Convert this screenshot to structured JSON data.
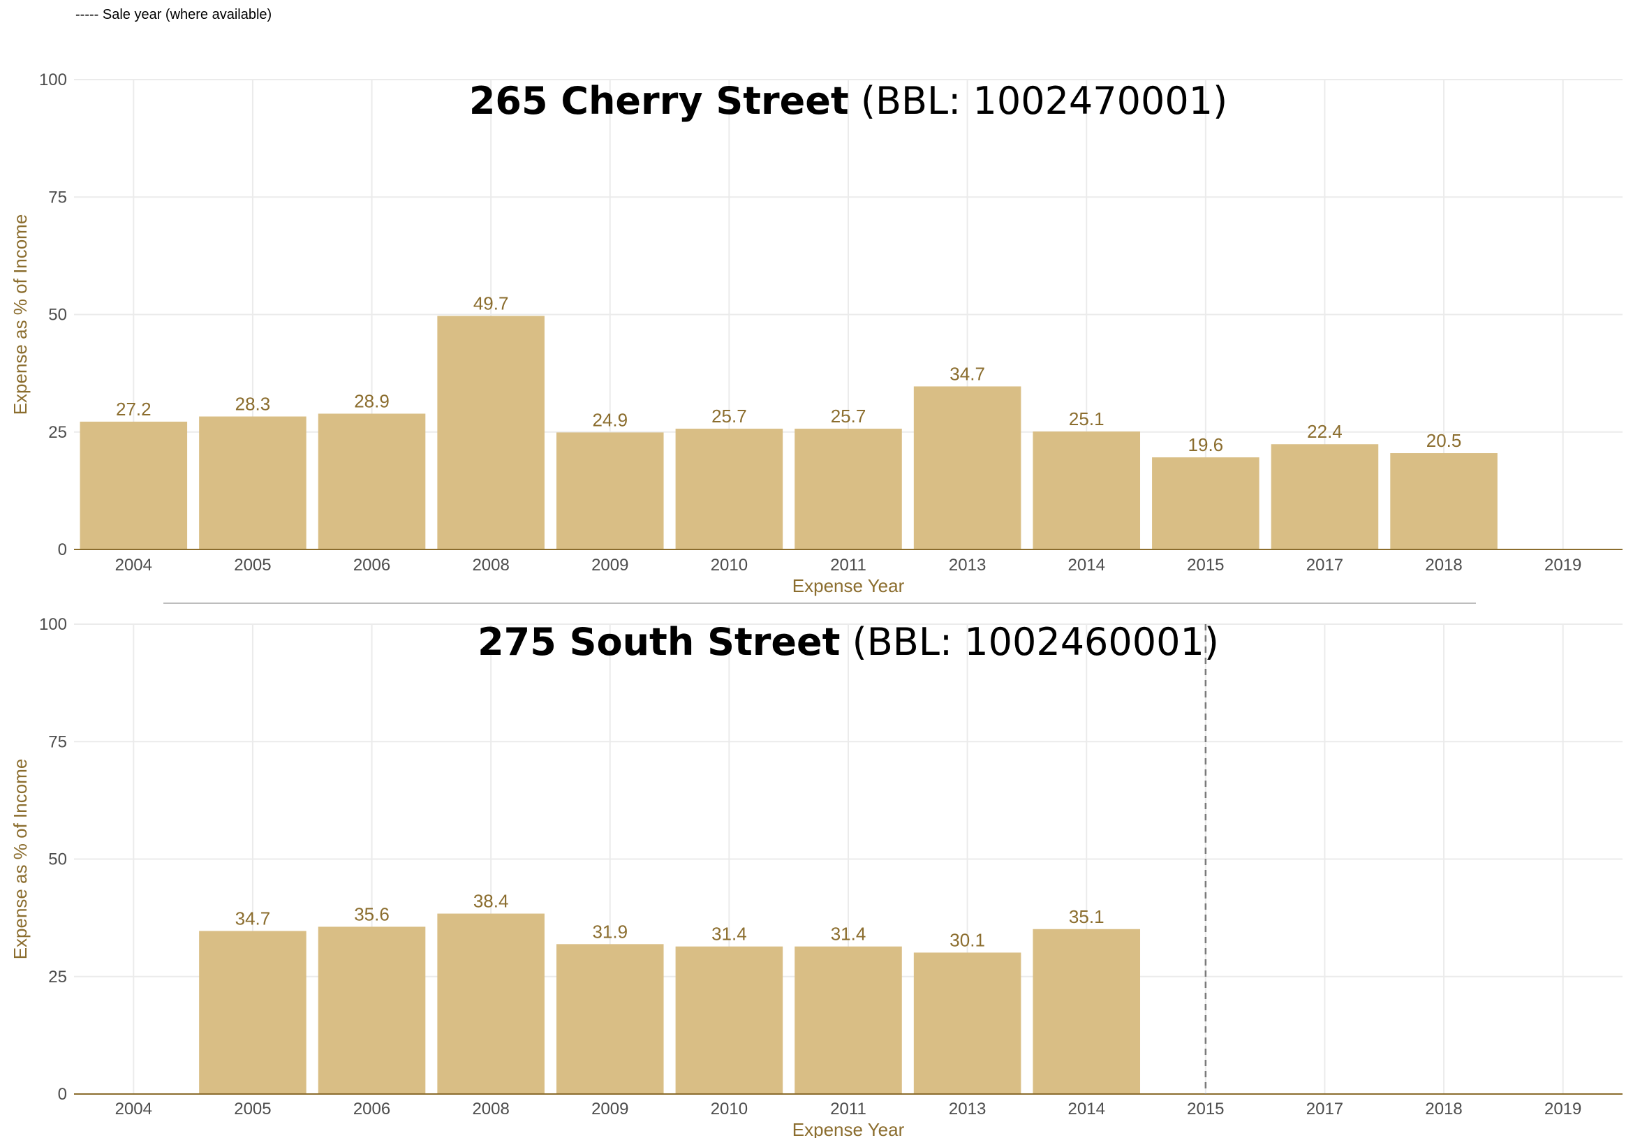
{
  "legend_note": "----- Sale year (where available)",
  "colors": {
    "bar": "#d9be85",
    "label": "#8b6d2e",
    "grid": "#ebebeb",
    "baseline": "#8b6d2e",
    "sale_line": "#7a7a7a"
  },
  "chart_data": [
    {
      "type": "bar",
      "title_bold": "265 Cherry Street",
      "title_normal": "(BBL: 1002470001)",
      "xlabel": "Expense Year",
      "ylabel": "Expense as % of Income",
      "ylim": [
        0,
        100
      ],
      "yticks": [
        0,
        25,
        50,
        75,
        100
      ],
      "grid": true,
      "categories": [
        "2004",
        "2005",
        "2006",
        "2008",
        "2009",
        "2010",
        "2011",
        "2013",
        "2014",
        "2015",
        "2017",
        "2018",
        "2019"
      ],
      "values": [
        27.2,
        28.3,
        28.9,
        49.7,
        24.9,
        25.7,
        25.7,
        34.7,
        25.1,
        19.6,
        22.4,
        20.5,
        null
      ],
      "labels": [
        "27.2",
        "28.3",
        "28.9",
        "49.7",
        "24.9",
        "25.7",
        "25.7",
        "34.7",
        "25.1",
        "19.6",
        "22.4",
        "20.5",
        ""
      ],
      "sale_year": null
    },
    {
      "type": "bar",
      "title_bold": "275 South Street",
      "title_normal": "(BBL: 1002460001)",
      "xlabel": "Expense Year",
      "ylabel": "Expense as % of Income",
      "ylim": [
        0,
        100
      ],
      "yticks": [
        0,
        25,
        50,
        75,
        100
      ],
      "grid": true,
      "categories": [
        "2004",
        "2005",
        "2006",
        "2008",
        "2009",
        "2010",
        "2011",
        "2013",
        "2014",
        "2015",
        "2017",
        "2018",
        "2019"
      ],
      "values": [
        null,
        34.7,
        35.6,
        38.4,
        31.9,
        31.4,
        31.4,
        30.1,
        35.1,
        null,
        null,
        null,
        null
      ],
      "labels": [
        "",
        "34.7",
        "35.6",
        "38.4",
        "31.9",
        "31.4",
        "31.4",
        "30.1",
        "35.1",
        "",
        "",
        "",
        ""
      ],
      "sale_year": "2015"
    }
  ]
}
